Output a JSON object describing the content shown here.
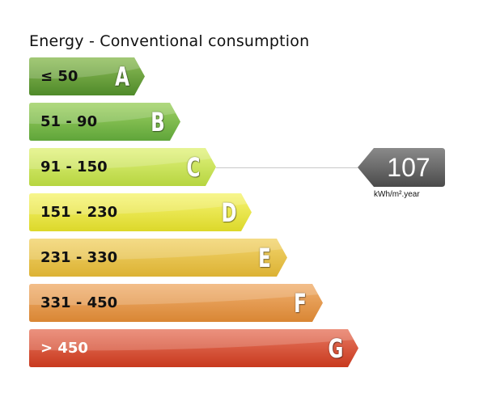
{
  "title": "Energy - Conventional consumption",
  "classes": [
    {
      "letter": "A",
      "range": "≤ 50",
      "color_top": "#8ebd58",
      "color_bottom": "#4f8a2a",
      "text_light": false
    },
    {
      "letter": "B",
      "range": "51 - 90",
      "color_top": "#9fd162",
      "color_bottom": "#5fa53a",
      "text_light": false
    },
    {
      "letter": "C",
      "range": "91 - 150",
      "color_top": "#e2f27e",
      "color_bottom": "#b6d540",
      "text_light": false
    },
    {
      "letter": "D",
      "range": "151 - 230",
      "color_top": "#f6f474",
      "color_bottom": "#dcd82a",
      "text_light": false
    },
    {
      "letter": "E",
      "range": "231 - 330",
      "color_top": "#f2d46c",
      "color_bottom": "#dcb234",
      "text_light": false
    },
    {
      "letter": "F",
      "range": "331 - 450",
      "color_top": "#f0b070",
      "color_bottom": "#d98634",
      "text_light": false
    },
    {
      "letter": "G",
      "range": "> 450",
      "color_top": "#e87a62",
      "color_bottom": "#c8391e",
      "text_light": true
    }
  ],
  "result": {
    "value": "107",
    "unit": "kWh/m².year",
    "class": "C",
    "badge_color": "#6e6e6e"
  }
}
